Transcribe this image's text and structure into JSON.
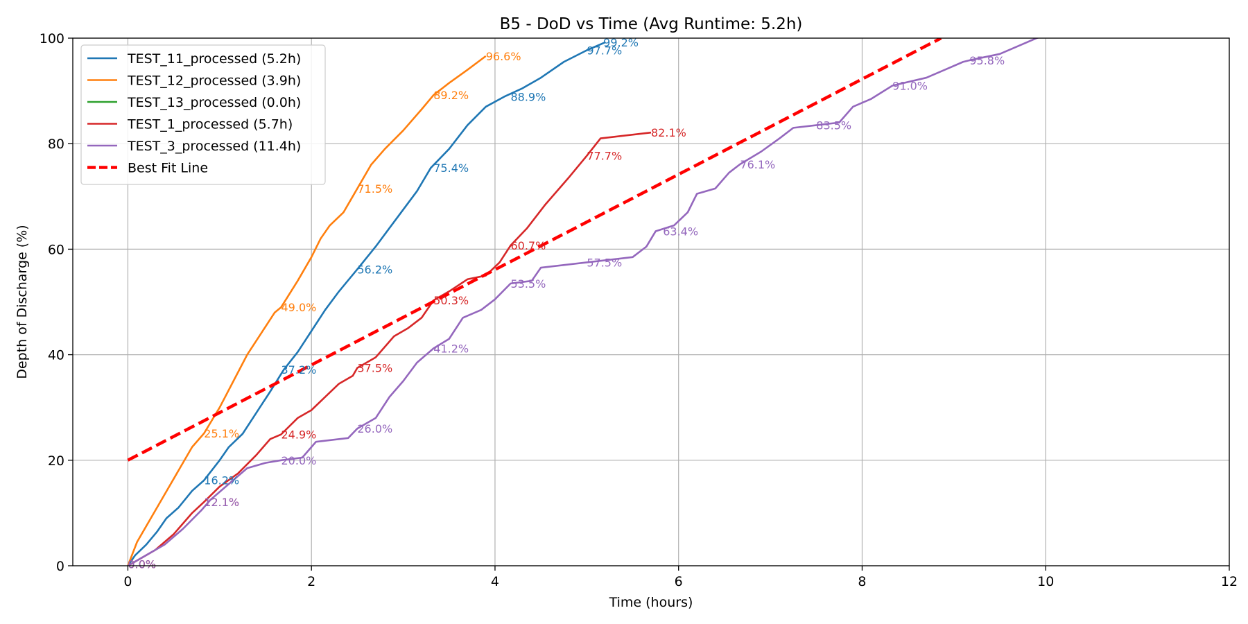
{
  "chart_data": {
    "type": "line",
    "title": "B5 - DoD vs Time (Avg Runtime: 5.2h)",
    "xlabel": "Time (hours)",
    "ylabel": "Depth of Discharge (%)",
    "xlim": [
      -0.6,
      12
    ],
    "ylim": [
      0,
      100
    ],
    "xticks": [
      0,
      2,
      4,
      6,
      8,
      10,
      12
    ],
    "yticks": [
      0,
      20,
      40,
      60,
      80,
      100
    ],
    "xtick_labels": [
      "0",
      "2",
      "4",
      "6",
      "8",
      "10",
      "12"
    ],
    "ytick_labels": [
      "0",
      "20",
      "40",
      "60",
      "80",
      "100"
    ],
    "grid": true,
    "legend_position": "top-left",
    "series": [
      {
        "name": "TEST_11_processed (5.2h)",
        "color": "#1f77b4",
        "style": "solid",
        "points": [
          [
            0,
            0
          ],
          [
            0.08,
            2
          ],
          [
            0.2,
            4
          ],
          [
            0.32,
            6.5
          ],
          [
            0.42,
            9
          ],
          [
            0.55,
            11
          ],
          [
            0.7,
            14.2
          ],
          [
            0.83,
            16.2
          ],
          [
            1.0,
            20
          ],
          [
            1.1,
            22.5
          ],
          [
            1.25,
            25
          ],
          [
            1.4,
            29
          ],
          [
            1.55,
            33
          ],
          [
            1.7,
            37.2
          ],
          [
            1.85,
            40.5
          ],
          [
            2.0,
            44.5
          ],
          [
            2.15,
            48.5
          ],
          [
            2.3,
            52
          ],
          [
            2.5,
            56.2
          ],
          [
            2.7,
            60.5
          ],
          [
            2.85,
            64
          ],
          [
            3.0,
            67.5
          ],
          [
            3.15,
            71
          ],
          [
            3.3,
            75.4
          ],
          [
            3.5,
            79
          ],
          [
            3.7,
            83.5
          ],
          [
            3.9,
            87
          ],
          [
            4.1,
            88.9
          ],
          [
            4.3,
            90.5
          ],
          [
            4.5,
            92.5
          ],
          [
            4.75,
            95.5
          ],
          [
            5.0,
            97.7
          ],
          [
            5.2,
            99.2
          ]
        ],
        "annotations": [
          {
            "x": 0.0,
            "y": 0.3,
            "text": "0.0%"
          },
          {
            "x": 0.83,
            "y": 16.2,
            "text": "16.2%"
          },
          {
            "x": 1.67,
            "y": 37.2,
            "text": "37.2%"
          },
          {
            "x": 2.5,
            "y": 56.2,
            "text": "56.2%"
          },
          {
            "x": 3.33,
            "y": 75.4,
            "text": "75.4%"
          },
          {
            "x": 4.17,
            "y": 88.9,
            "text": "88.9%"
          },
          {
            "x": 5.0,
            "y": 97.7,
            "text": "97.7%"
          },
          {
            "x": 5.18,
            "y": 99.2,
            "text": "99.2%"
          }
        ]
      },
      {
        "name": "TEST_12_processed (3.9h)",
        "color": "#ff7f0e",
        "style": "solid",
        "points": [
          [
            0,
            0
          ],
          [
            0.1,
            4.5
          ],
          [
            0.25,
            9
          ],
          [
            0.4,
            13.5
          ],
          [
            0.55,
            18
          ],
          [
            0.7,
            22.5
          ],
          [
            0.83,
            25.1
          ],
          [
            1.0,
            30
          ],
          [
            1.15,
            35
          ],
          [
            1.3,
            40
          ],
          [
            1.45,
            44
          ],
          [
            1.6,
            48
          ],
          [
            1.67,
            49.0
          ],
          [
            1.85,
            54
          ],
          [
            2.0,
            58.5
          ],
          [
            2.1,
            62
          ],
          [
            2.2,
            64.5
          ],
          [
            2.35,
            67
          ],
          [
            2.5,
            71.5
          ],
          [
            2.65,
            76
          ],
          [
            2.8,
            79
          ],
          [
            3.0,
            82.5
          ],
          [
            3.2,
            86.5
          ],
          [
            3.33,
            89.2
          ],
          [
            3.5,
            91.5
          ],
          [
            3.7,
            94
          ],
          [
            3.9,
            96.6
          ]
        ],
        "annotations": [
          {
            "x": 0.0,
            "y": 0.3,
            "text": "0.0%"
          },
          {
            "x": 0.83,
            "y": 25.1,
            "text": "25.1%"
          },
          {
            "x": 1.67,
            "y": 49.0,
            "text": "49.0%"
          },
          {
            "x": 2.5,
            "y": 71.5,
            "text": "71.5%"
          },
          {
            "x": 3.33,
            "y": 89.2,
            "text": "89.2%"
          },
          {
            "x": 3.9,
            "y": 96.6,
            "text": "96.6%"
          }
        ]
      },
      {
        "name": "TEST_13_processed (0.0h)",
        "color": "#2ca02c",
        "style": "solid",
        "points": [
          [
            0,
            0
          ],
          [
            0.0,
            0.1
          ]
        ],
        "annotations": []
      },
      {
        "name": "TEST_1_processed (5.7h)",
        "color": "#d62728",
        "style": "solid",
        "points": [
          [
            0,
            0
          ],
          [
            0.15,
            1.5
          ],
          [
            0.3,
            3
          ],
          [
            0.5,
            6
          ],
          [
            0.7,
            10
          ],
          [
            0.83,
            12.1
          ],
          [
            1.0,
            15
          ],
          [
            1.2,
            17.5
          ],
          [
            1.4,
            21
          ],
          [
            1.55,
            24
          ],
          [
            1.67,
            24.9
          ],
          [
            1.85,
            28
          ],
          [
            2.0,
            29.5
          ],
          [
            2.15,
            32
          ],
          [
            2.3,
            34.5
          ],
          [
            2.45,
            36
          ],
          [
            2.5,
            37.5
          ],
          [
            2.7,
            39.5
          ],
          [
            2.9,
            43.5
          ],
          [
            3.05,
            45
          ],
          [
            3.2,
            47
          ],
          [
            3.33,
            50.3
          ],
          [
            3.5,
            52
          ],
          [
            3.7,
            54.3
          ],
          [
            3.9,
            55
          ],
          [
            4.05,
            57.5
          ],
          [
            4.17,
            60.7
          ],
          [
            4.35,
            64
          ],
          [
            4.55,
            68.5
          ],
          [
            4.8,
            73.5
          ],
          [
            5.0,
            77.7
          ],
          [
            5.15,
            81
          ],
          [
            5.3,
            81.3
          ],
          [
            5.7,
            82.1
          ]
        ],
        "annotations": [
          {
            "x": 0.0,
            "y": 0.3,
            "text": "0.0%"
          },
          {
            "x": 0.83,
            "y": 12.1,
            "text": "12.1%"
          },
          {
            "x": 1.67,
            "y": 24.9,
            "text": "24.9%"
          },
          {
            "x": 2.5,
            "y": 37.5,
            "text": "37.5%"
          },
          {
            "x": 3.33,
            "y": 50.3,
            "text": "50.3%"
          },
          {
            "x": 4.17,
            "y": 60.7,
            "text": "60.7%"
          },
          {
            "x": 5.0,
            "y": 77.7,
            "text": "77.7%"
          },
          {
            "x": 5.7,
            "y": 82.1,
            "text": "82.1%"
          }
        ]
      },
      {
        "name": "TEST_3_processed (11.4h)",
        "color": "#9467bd",
        "style": "solid",
        "points": [
          [
            0,
            0
          ],
          [
            0.2,
            2
          ],
          [
            0.4,
            4
          ],
          [
            0.6,
            7
          ],
          [
            0.8,
            10.5
          ],
          [
            0.9,
            12.5
          ],
          [
            1.1,
            15.5
          ],
          [
            1.3,
            18.5
          ],
          [
            1.5,
            19.5
          ],
          [
            1.67,
            20.0
          ],
          [
            1.9,
            20.5
          ],
          [
            2.05,
            23.5
          ],
          [
            2.4,
            24.2
          ],
          [
            2.5,
            26.0
          ],
          [
            2.7,
            28
          ],
          [
            2.85,
            32
          ],
          [
            3.0,
            35
          ],
          [
            3.15,
            38.5
          ],
          [
            3.33,
            41.2
          ],
          [
            3.5,
            43
          ],
          [
            3.65,
            47
          ],
          [
            3.85,
            48.5
          ],
          [
            4.0,
            50.5
          ],
          [
            4.17,
            53.5
          ],
          [
            4.4,
            54
          ],
          [
            4.5,
            56.5
          ],
          [
            5.0,
            57.5
          ],
          [
            5.5,
            58.5
          ],
          [
            5.65,
            60.5
          ],
          [
            5.75,
            63.4
          ],
          [
            5.95,
            64.5
          ],
          [
            6.1,
            67
          ],
          [
            6.2,
            70.5
          ],
          [
            6.4,
            71.5
          ],
          [
            6.55,
            74.5
          ],
          [
            6.67,
            76.1
          ],
          [
            6.9,
            78.5
          ],
          [
            7.1,
            81
          ],
          [
            7.25,
            83
          ],
          [
            7.5,
            83.5
          ],
          [
            7.75,
            84
          ],
          [
            7.9,
            87
          ],
          [
            8.1,
            88.5
          ],
          [
            8.33,
            91.0
          ],
          [
            8.7,
            92.5
          ],
          [
            8.9,
            94
          ],
          [
            9.1,
            95.5
          ],
          [
            9.17,
            95.8
          ],
          [
            9.5,
            97
          ],
          [
            9.7,
            98.5
          ],
          [
            9.9,
            100
          ],
          [
            10.2,
            101.5
          ]
        ],
        "annotations": [
          {
            "x": 0.0,
            "y": 0.3,
            "text": "0.0%"
          },
          {
            "x": 0.83,
            "y": 12.1,
            "text": "12.1%"
          },
          {
            "x": 1.67,
            "y": 20.0,
            "text": "20.0%"
          },
          {
            "x": 2.5,
            "y": 26.0,
            "text": "26.0%"
          },
          {
            "x": 3.33,
            "y": 41.2,
            "text": "41.2%"
          },
          {
            "x": 4.17,
            "y": 53.5,
            "text": "53.5%"
          },
          {
            "x": 5.0,
            "y": 57.5,
            "text": "57.5%"
          },
          {
            "x": 5.83,
            "y": 63.4,
            "text": "63.4%"
          },
          {
            "x": 6.67,
            "y": 76.1,
            "text": "76.1%"
          },
          {
            "x": 7.5,
            "y": 83.5,
            "text": "83.5%"
          },
          {
            "x": 8.33,
            "y": 91.0,
            "text": "91.0%"
          },
          {
            "x": 9.17,
            "y": 95.8,
            "text": "95.8%"
          }
        ]
      },
      {
        "name": "Best Fit Line",
        "color": "#ff0000",
        "style": "dashed",
        "points": [
          [
            0,
            20
          ],
          [
            8.86,
            100
          ]
        ],
        "annotations": []
      }
    ]
  }
}
